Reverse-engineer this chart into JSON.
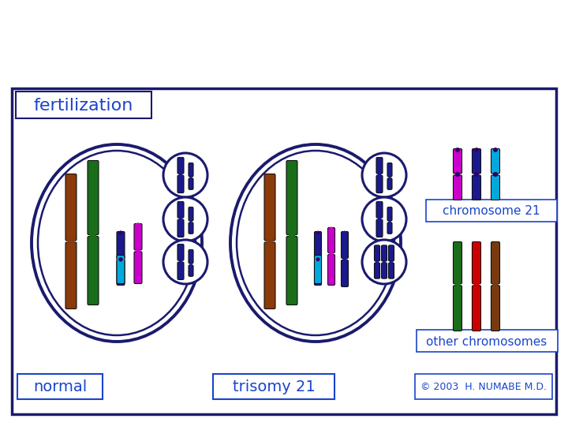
{
  "bg_color": "#ffffff",
  "border_color": "#1a1a6e",
  "title": "fertilization",
  "title_color": "#1a44cc",
  "title_fontsize": 16,
  "normal_label": "normal",
  "trisomy_label": "trisomy 21",
  "chr21_label": "chromosome 21",
  "other_label": "other chromosomes",
  "copyright": "© 2003  H. NUMABE M.D.",
  "label_color": "#1a44cc",
  "label_fontsize": 14,
  "copyright_fontsize": 9,
  "box_border": "#1a44cc",
  "cell_border": "#1a1a6e",
  "chr_brown": "#8B3A0A",
  "chr_green": "#1a6e1a",
  "chr_cyan": "#00aadd",
  "chr_purple": "#330066",
  "chr_magenta": "#cc00cc",
  "chr_navy": "#1a1a8e",
  "chr_red": "#cc0000",
  "chr_dark_brown": "#7a3a10"
}
